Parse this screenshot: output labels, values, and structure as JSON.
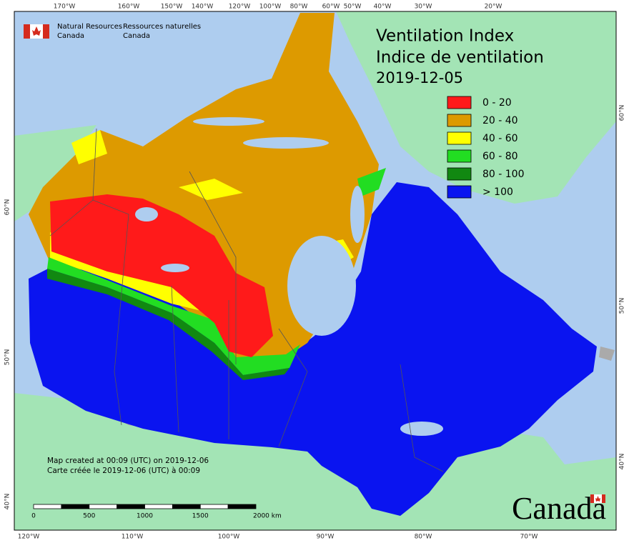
{
  "header": {
    "en": [
      "Natural Resources",
      "Canada"
    ],
    "fr": [
      "Ressources naturelles",
      "Canada"
    ]
  },
  "title": {
    "en": "Ventilation Index",
    "fr": "Indice de ventilation",
    "date": "2019-12-05"
  },
  "legend": [
    {
      "label": "0 - 20",
      "color": "#ff1a1a"
    },
    {
      "label": "20 - 40",
      "color": "#dd9a00"
    },
    {
      "label": "40 - 60",
      "color": "#ffff00"
    },
    {
      "label": "60 - 80",
      "color": "#22dd22"
    },
    {
      "label": "80 - 100",
      "color": "#118811"
    },
    {
      "label": "> 100",
      "color": "#0a14f0"
    }
  ],
  "graticule": {
    "top": [
      "170°W",
      "160°W",
      "150°W",
      "140°W",
      "120°W",
      "100°W",
      "80°W",
      "60°W",
      "50°W",
      "40°W",
      "30°W",
      "20°W"
    ],
    "bottom": [
      "120°W",
      "110°W",
      "100°W",
      "90°W",
      "80°W",
      "70°W"
    ],
    "left": [
      "60°N",
      "50°N",
      "40°N"
    ],
    "right": [
      "60°N",
      "50°N",
      "40°N"
    ]
  },
  "credits": [
    "Map created at 00:09 (UTC) on 2019-12-06",
    "Carte créée le 2019-12-06 (UTC) à 00:09"
  ],
  "scale_bar": [
    "0",
    "500",
    "1000",
    "1500",
    "2000 km"
  ],
  "wordmark": "Canada"
}
